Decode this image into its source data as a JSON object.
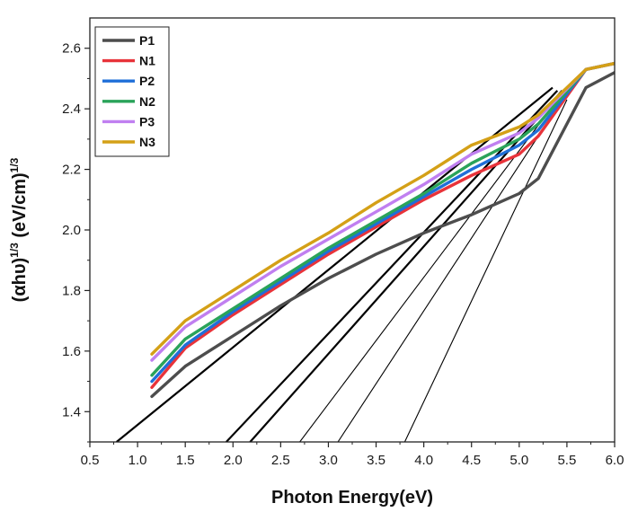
{
  "chart_data": {
    "type": "line",
    "title": "",
    "xlabel": "Photon Energy(eV)",
    "ylabel_main": "(αhυ)",
    "ylabel_exp1": "1/3",
    "ylabel_mid": " (eV/cm)",
    "ylabel_exp2": "1/3",
    "xlim": [
      0.5,
      6.0
    ],
    "ylim": [
      1.3,
      2.7
    ],
    "xticks": [
      "0.5",
      "1.0",
      "1.5",
      "2.0",
      "2.5",
      "3.0",
      "3.5",
      "4.0",
      "4.5",
      "5.0",
      "5.5",
      "6.0"
    ],
    "yticks": [
      "1.4",
      "1.6",
      "1.8",
      "2.0",
      "2.2",
      "2.4",
      "2.6"
    ],
    "legend_position": "top-left",
    "series": [
      {
        "name": "P1",
        "color": "#4d4d4d",
        "x": [
          1.15,
          1.5,
          2.0,
          2.5,
          3.0,
          3.5,
          4.0,
          4.5,
          5.0,
          5.2,
          5.7,
          6.0
        ],
        "y": [
          1.45,
          1.55,
          1.65,
          1.75,
          1.84,
          1.92,
          1.99,
          2.05,
          2.12,
          2.17,
          2.47,
          2.52
        ]
      },
      {
        "name": "N1",
        "color": "#e8333a",
        "x": [
          1.15,
          1.5,
          2.0,
          2.5,
          3.0,
          3.5,
          4.0,
          4.5,
          5.0,
          5.2,
          5.7,
          6.0
        ],
        "y": [
          1.48,
          1.61,
          1.72,
          1.82,
          1.92,
          2.01,
          2.1,
          2.18,
          2.25,
          2.31,
          2.53,
          2.55
        ]
      },
      {
        "name": "P2",
        "color": "#1f6fd8",
        "x": [
          1.15,
          1.5,
          2.0,
          2.5,
          3.0,
          3.5,
          4.0,
          4.5,
          5.0,
          5.2,
          5.7,
          6.0
        ],
        "y": [
          1.5,
          1.62,
          1.73,
          1.83,
          1.93,
          2.02,
          2.11,
          2.2,
          2.28,
          2.33,
          2.53,
          2.55
        ]
      },
      {
        "name": "N2",
        "color": "#2aa35a",
        "x": [
          1.15,
          1.5,
          2.0,
          2.5,
          3.0,
          3.5,
          4.0,
          4.5,
          5.0,
          5.2,
          5.7,
          6.0
        ],
        "y": [
          1.52,
          1.64,
          1.74,
          1.84,
          1.94,
          2.03,
          2.12,
          2.22,
          2.3,
          2.35,
          2.53,
          2.55
        ]
      },
      {
        "name": "P3",
        "color": "#c07ff0",
        "x": [
          1.15,
          1.5,
          2.0,
          2.5,
          3.0,
          3.5,
          4.0,
          4.5,
          5.0,
          5.2,
          5.7,
          6.0
        ],
        "y": [
          1.57,
          1.68,
          1.78,
          1.88,
          1.97,
          2.06,
          2.15,
          2.25,
          2.32,
          2.37,
          2.53,
          2.55
        ]
      },
      {
        "name": "N3",
        "color": "#d4a017",
        "x": [
          1.15,
          1.5,
          2.0,
          2.5,
          3.0,
          3.5,
          4.0,
          4.5,
          5.0,
          5.2,
          5.7,
          6.0
        ],
        "y": [
          1.59,
          1.7,
          1.8,
          1.9,
          1.99,
          2.09,
          2.18,
          2.28,
          2.34,
          2.38,
          2.53,
          2.55
        ]
      }
    ],
    "fit_lines": [
      {
        "name": "fit-line-1",
        "x": [
          0.78,
          5.35
        ],
        "y": [
          1.3,
          2.47
        ],
        "bold": true
      },
      {
        "name": "fit-line-2",
        "x": [
          1.93,
          5.4
        ],
        "y": [
          1.3,
          2.46
        ],
        "bold": true
      },
      {
        "name": "fit-line-3",
        "x": [
          2.18,
          5.45
        ],
        "y": [
          1.3,
          2.46
        ],
        "bold": true
      },
      {
        "name": "fit-line-4",
        "x": [
          2.7,
          5.45
        ],
        "y": [
          1.3,
          2.45
        ],
        "bold": false
      },
      {
        "name": "fit-line-5",
        "x": [
          3.1,
          5.45
        ],
        "y": [
          1.3,
          2.43
        ],
        "bold": false
      },
      {
        "name": "fit-line-6",
        "x": [
          3.8,
          5.5
        ],
        "y": [
          1.3,
          2.43
        ],
        "bold": false
      }
    ]
  }
}
